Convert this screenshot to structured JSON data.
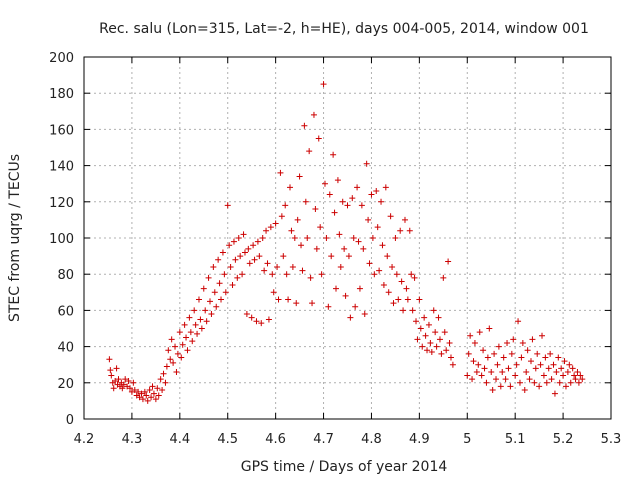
{
  "chart_data": {
    "type": "scatter",
    "title": "Rec. salu (Lon=315, Lat=-2, h=HE), days 004-005, 2014, window 001",
    "xlabel": "GPS time / Days of year 2014",
    "ylabel": "STEC from uqrg / TECUs",
    "xlim": [
      4.2,
      5.3
    ],
    "ylim": [
      0,
      200
    ],
    "xticks": [
      "4.2",
      "4.3",
      "4.4",
      "4.5",
      "4.6",
      "4.7",
      "4.8",
      "4.9",
      "5",
      "5.1",
      "5.2",
      "5.3"
    ],
    "yticks": [
      "0",
      "20",
      "40",
      "60",
      "80",
      "100",
      "120",
      "140",
      "160",
      "180",
      "200"
    ],
    "grid": true,
    "marker": "+",
    "color": "#cc0000",
    "points": [
      [
        4.253,
        33
      ],
      [
        4.255,
        27
      ],
      [
        4.257,
        24
      ],
      [
        4.26,
        20
      ],
      [
        4.262,
        17
      ],
      [
        4.265,
        21
      ],
      [
        4.268,
        28
      ],
      [
        4.27,
        19
      ],
      [
        4.272,
        22
      ],
      [
        4.275,
        18
      ],
      [
        4.278,
        20
      ],
      [
        4.28,
        17
      ],
      [
        4.283,
        19
      ],
      [
        4.286,
        22
      ],
      [
        4.29,
        18
      ],
      [
        4.293,
        21
      ],
      [
        4.296,
        17
      ],
      [
        4.3,
        15
      ],
      [
        4.303,
        20
      ],
      [
        4.306,
        16
      ],
      [
        4.31,
        13
      ],
      [
        4.313,
        15
      ],
      [
        4.316,
        12
      ],
      [
        4.32,
        14
      ],
      [
        4.323,
        11
      ],
      [
        4.327,
        15
      ],
      [
        4.33,
        13
      ],
      [
        4.333,
        10
      ],
      [
        4.337,
        16
      ],
      [
        4.34,
        12
      ],
      [
        4.343,
        18
      ],
      [
        4.346,
        14
      ],
      [
        4.35,
        11
      ],
      [
        4.353,
        17
      ],
      [
        4.356,
        13
      ],
      [
        4.36,
        22
      ],
      [
        4.363,
        16
      ],
      [
        4.366,
        25
      ],
      [
        4.37,
        20
      ],
      [
        4.373,
        29
      ],
      [
        4.376,
        38
      ],
      [
        4.38,
        33
      ],
      [
        4.383,
        44
      ],
      [
        4.386,
        31
      ],
      [
        4.39,
        40
      ],
      [
        4.393,
        26
      ],
      [
        4.396,
        36
      ],
      [
        4.4,
        48
      ],
      [
        4.403,
        34
      ],
      [
        4.406,
        41
      ],
      [
        4.41,
        52
      ],
      [
        4.413,
        45
      ],
      [
        4.416,
        38
      ],
      [
        4.42,
        56
      ],
      [
        4.423,
        48
      ],
      [
        4.426,
        43
      ],
      [
        4.43,
        60
      ],
      [
        4.433,
        52
      ],
      [
        4.436,
        47
      ],
      [
        4.44,
        66
      ],
      [
        4.443,
        55
      ],
      [
        4.446,
        50
      ],
      [
        4.45,
        72
      ],
      [
        4.453,
        60
      ],
      [
        4.456,
        54
      ],
      [
        4.46,
        78
      ],
      [
        4.463,
        65
      ],
      [
        4.466,
        58
      ],
      [
        4.47,
        84
      ],
      [
        4.473,
        70
      ],
      [
        4.476,
        62
      ],
      [
        4.48,
        88
      ],
      [
        4.483,
        75
      ],
      [
        4.486,
        66
      ],
      [
        4.49,
        92
      ],
      [
        4.493,
        80
      ],
      [
        4.496,
        70
      ],
      [
        4.5,
        118
      ],
      [
        4.503,
        96
      ],
      [
        4.506,
        84
      ],
      [
        4.51,
        74
      ],
      [
        4.513,
        98
      ],
      [
        4.516,
        88
      ],
      [
        4.52,
        78
      ],
      [
        4.523,
        100
      ],
      [
        4.526,
        90
      ],
      [
        4.53,
        80
      ],
      [
        4.533,
        102
      ],
      [
        4.536,
        92
      ],
      [
        4.54,
        58
      ],
      [
        4.543,
        94
      ],
      [
        4.546,
        86
      ],
      [
        4.55,
        56
      ],
      [
        4.553,
        96
      ],
      [
        4.556,
        88
      ],
      [
        4.56,
        54
      ],
      [
        4.563,
        98
      ],
      [
        4.566,
        90
      ],
      [
        4.57,
        53
      ],
      [
        4.573,
        100
      ],
      [
        4.576,
        82
      ],
      [
        4.58,
        104
      ],
      [
        4.583,
        86
      ],
      [
        4.586,
        55
      ],
      [
        4.59,
        106
      ],
      [
        4.593,
        80
      ],
      [
        4.596,
        70
      ],
      [
        4.6,
        108
      ],
      [
        4.603,
        84
      ],
      [
        4.606,
        66
      ],
      [
        4.61,
        136
      ],
      [
        4.613,
        112
      ],
      [
        4.616,
        90
      ],
      [
        4.62,
        118
      ],
      [
        4.623,
        80
      ],
      [
        4.626,
        66
      ],
      [
        4.63,
        128
      ],
      [
        4.633,
        104
      ],
      [
        4.636,
        84
      ],
      [
        4.64,
        100
      ],
      [
        4.643,
        64
      ],
      [
        4.646,
        110
      ],
      [
        4.65,
        134
      ],
      [
        4.653,
        96
      ],
      [
        4.656,
        82
      ],
      [
        4.66,
        162
      ],
      [
        4.663,
        120
      ],
      [
        4.666,
        100
      ],
      [
        4.67,
        148
      ],
      [
        4.673,
        78
      ],
      [
        4.676,
        64
      ],
      [
        4.68,
        168
      ],
      [
        4.683,
        116
      ],
      [
        4.686,
        94
      ],
      [
        4.69,
        155
      ],
      [
        4.693,
        106
      ],
      [
        4.696,
        80
      ],
      [
        4.7,
        185
      ],
      [
        4.703,
        130
      ],
      [
        4.706,
        100
      ],
      [
        4.71,
        62
      ],
      [
        4.713,
        124
      ],
      [
        4.716,
        90
      ],
      [
        4.72,
        146
      ],
      [
        4.723,
        114
      ],
      [
        4.726,
        72
      ],
      [
        4.73,
        132
      ],
      [
        4.733,
        102
      ],
      [
        4.736,
        84
      ],
      [
        4.74,
        120
      ],
      [
        4.743,
        94
      ],
      [
        4.746,
        68
      ],
      [
        4.75,
        118
      ],
      [
        4.753,
        90
      ],
      [
        4.756,
        56
      ],
      [
        4.76,
        122
      ],
      [
        4.763,
        100
      ],
      [
        4.766,
        62
      ],
      [
        4.77,
        128
      ],
      [
        4.773,
        98
      ],
      [
        4.776,
        72
      ],
      [
        4.78,
        118
      ],
      [
        4.783,
        94
      ],
      [
        4.786,
        58
      ],
      [
        4.79,
        141
      ],
      [
        4.793,
        110
      ],
      [
        4.796,
        86
      ],
      [
        4.8,
        124
      ],
      [
        4.803,
        100
      ],
      [
        4.806,
        80
      ],
      [
        4.81,
        126
      ],
      [
        4.813,
        106
      ],
      [
        4.816,
        82
      ],
      [
        4.82,
        120
      ],
      [
        4.823,
        96
      ],
      [
        4.826,
        74
      ],
      [
        4.83,
        128
      ],
      [
        4.833,
        90
      ],
      [
        4.836,
        70
      ],
      [
        4.84,
        112
      ],
      [
        4.843,
        84
      ],
      [
        4.846,
        64
      ],
      [
        4.85,
        100
      ],
      [
        4.853,
        80
      ],
      [
        4.856,
        66
      ],
      [
        4.86,
        104
      ],
      [
        4.863,
        76
      ],
      [
        4.866,
        60
      ],
      [
        4.87,
        110
      ],
      [
        4.873,
        72
      ],
      [
        4.876,
        66
      ],
      [
        4.88,
        104
      ],
      [
        4.883,
        80
      ],
      [
        4.886,
        60
      ],
      [
        4.89,
        78
      ],
      [
        4.893,
        54
      ],
      [
        4.896,
        44
      ],
      [
        4.9,
        66
      ],
      [
        4.903,
        50
      ],
      [
        4.906,
        40
      ],
      [
        4.91,
        56
      ],
      [
        4.913,
        46
      ],
      [
        4.916,
        38
      ],
      [
        4.92,
        52
      ],
      [
        4.923,
        42
      ],
      [
        4.926,
        37
      ],
      [
        4.93,
        60
      ],
      [
        4.933,
        48
      ],
      [
        4.936,
        40
      ],
      [
        4.94,
        56
      ],
      [
        4.943,
        44
      ],
      [
        4.946,
        36
      ],
      [
        4.95,
        78
      ],
      [
        4.953,
        48
      ],
      [
        4.956,
        38
      ],
      [
        4.96,
        87
      ],
      [
        4.963,
        42
      ],
      [
        4.966,
        34
      ],
      [
        4.97,
        30
      ],
      [
        5.0,
        24
      ],
      [
        5.003,
        36
      ],
      [
        5.006,
        46
      ],
      [
        5.01,
        22
      ],
      [
        5.013,
        32
      ],
      [
        5.016,
        42
      ],
      [
        5.02,
        26
      ],
      [
        5.023,
        30
      ],
      [
        5.026,
        48
      ],
      [
        5.03,
        24
      ],
      [
        5.033,
        38
      ],
      [
        5.036,
        28
      ],
      [
        5.04,
        20
      ],
      [
        5.043,
        34
      ],
      [
        5.046,
        50
      ],
      [
        5.05,
        26
      ],
      [
        5.053,
        16
      ],
      [
        5.056,
        36
      ],
      [
        5.06,
        22
      ],
      [
        5.063,
        30
      ],
      [
        5.066,
        40
      ],
      [
        5.07,
        18
      ],
      [
        5.073,
        26
      ],
      [
        5.076,
        34
      ],
      [
        5.08,
        22
      ],
      [
        5.083,
        42
      ],
      [
        5.086,
        28
      ],
      [
        5.09,
        18
      ],
      [
        5.093,
        36
      ],
      [
        5.096,
        44
      ],
      [
        5.1,
        24
      ],
      [
        5.103,
        30
      ],
      [
        5.106,
        54
      ],
      [
        5.11,
        20
      ],
      [
        5.113,
        34
      ],
      [
        5.116,
        42
      ],
      [
        5.12,
        16
      ],
      [
        5.123,
        26
      ],
      [
        5.126,
        38
      ],
      [
        5.13,
        22
      ],
      [
        5.133,
        32
      ],
      [
        5.136,
        44
      ],
      [
        5.14,
        20
      ],
      [
        5.143,
        28
      ],
      [
        5.146,
        36
      ],
      [
        5.15,
        18
      ],
      [
        5.153,
        30
      ],
      [
        5.156,
        46
      ],
      [
        5.16,
        24
      ],
      [
        5.163,
        34
      ],
      [
        5.166,
        20
      ],
      [
        5.17,
        28
      ],
      [
        5.173,
        36
      ],
      [
        5.176,
        22
      ],
      [
        5.18,
        30
      ],
      [
        5.183,
        14
      ],
      [
        5.186,
        26
      ],
      [
        5.19,
        34
      ],
      [
        5.193,
        20
      ],
      [
        5.196,
        28
      ],
      [
        5.2,
        24
      ],
      [
        5.203,
        32
      ],
      [
        5.206,
        18
      ],
      [
        5.21,
        26
      ],
      [
        5.213,
        30
      ],
      [
        5.216,
        20
      ],
      [
        5.22,
        28
      ],
      [
        5.223,
        24
      ],
      [
        5.226,
        22
      ],
      [
        5.23,
        26
      ],
      [
        5.233,
        20
      ],
      [
        5.236,
        24
      ],
      [
        5.24,
        22
      ]
    ]
  }
}
